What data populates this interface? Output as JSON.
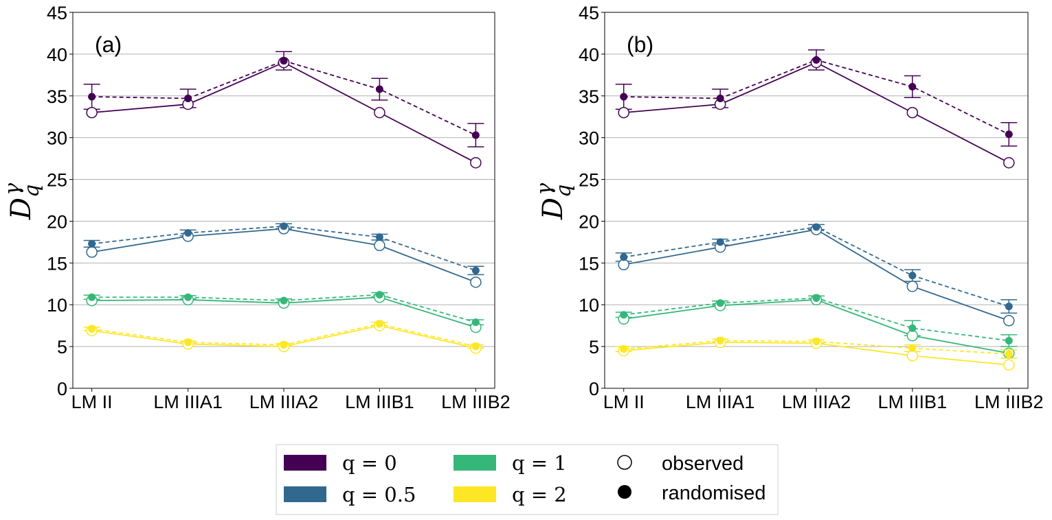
{
  "chart_data": [
    {
      "type": "line",
      "panel_label": "(a)",
      "categories": [
        "LM II",
        "LM IIIA1",
        "LM IIIA2",
        "LM IIIB1",
        "LM IIIB2"
      ],
      "ylabel": "D_q^γ",
      "ylim": [
        0,
        45
      ],
      "yticks": [
        0,
        5,
        10,
        15,
        20,
        25,
        30,
        35,
        40,
        45
      ],
      "grid": "horizontal",
      "series": [
        {
          "q": "0",
          "color": "#440154",
          "observed": [
            33.0,
            34.0,
            39.0,
            33.0,
            27.0
          ],
          "randomised": [
            34.9,
            34.7,
            39.2,
            35.8,
            30.3
          ],
          "err": [
            1.5,
            1.1,
            1.1,
            1.3,
            1.4
          ]
        },
        {
          "q": "0.5",
          "color": "#31688e",
          "observed": [
            16.3,
            18.2,
            19.1,
            17.1,
            12.7
          ],
          "randomised": [
            17.3,
            18.6,
            19.4,
            18.1,
            14.1
          ],
          "err": [
            0.4,
            0.35,
            0.3,
            0.35,
            0.5
          ]
        },
        {
          "q": "1",
          "color": "#35b779",
          "observed": [
            10.5,
            10.6,
            10.2,
            10.9,
            7.3
          ],
          "randomised": [
            10.9,
            10.9,
            10.5,
            11.2,
            7.9
          ],
          "err": [
            0.25,
            0.2,
            0.2,
            0.25,
            0.3
          ]
        },
        {
          "q": "2",
          "color": "#fde725",
          "observed": [
            6.9,
            5.3,
            5.0,
            7.5,
            4.8
          ],
          "randomised": [
            7.1,
            5.5,
            5.2,
            7.7,
            5.0
          ],
          "err": [
            0.2,
            0.15,
            0.15,
            0.2,
            0.2
          ]
        }
      ]
    },
    {
      "type": "line",
      "panel_label": "(b)",
      "categories": [
        "LM II",
        "LM IIIA1",
        "LM IIIA2",
        "LM IIIB1",
        "LM IIIB2"
      ],
      "ylabel": "D_q^γ",
      "ylim": [
        0,
        45
      ],
      "yticks": [
        0,
        5,
        10,
        15,
        20,
        25,
        30,
        35,
        40,
        45
      ],
      "grid": "horizontal",
      "series": [
        {
          "q": "0",
          "color": "#440154",
          "observed": [
            33.0,
            34.0,
            39.0,
            33.0,
            27.0
          ],
          "randomised": [
            34.9,
            34.7,
            39.3,
            36.1,
            30.4
          ],
          "err": [
            1.5,
            1.1,
            1.2,
            1.3,
            1.4
          ]
        },
        {
          "q": "0.5",
          "color": "#31688e",
          "observed": [
            14.8,
            16.9,
            19.0,
            12.2,
            8.1
          ],
          "randomised": [
            15.7,
            17.5,
            19.3,
            13.5,
            9.8
          ],
          "err": [
            0.5,
            0.35,
            0.3,
            0.7,
            0.8
          ]
        },
        {
          "q": "1",
          "color": "#35b779",
          "observed": [
            8.3,
            9.9,
            10.6,
            6.3,
            4.2
          ],
          "randomised": [
            8.8,
            10.2,
            10.8,
            7.2,
            5.7
          ],
          "err": [
            0.3,
            0.25,
            0.25,
            0.9,
            0.7
          ]
        },
        {
          "q": "2",
          "color": "#fde725",
          "observed": [
            4.5,
            5.5,
            5.4,
            3.9,
            2.8
          ],
          "randomised": [
            4.7,
            5.7,
            5.6,
            4.8,
            4.1
          ],
          "err": [
            0.3,
            0.2,
            0.2,
            0.4,
            0.5
          ]
        }
      ]
    }
  ],
  "legend": {
    "items": [
      {
        "label": "q = 0",
        "color": "#440154"
      },
      {
        "label": "q = 0.5",
        "color": "#31688e"
      },
      {
        "label": "q = 1",
        "color": "#35b779"
      },
      {
        "label": "q = 2",
        "color": "#fde725"
      }
    ],
    "observed_label": "observed",
    "randomised_label": "randomised"
  }
}
